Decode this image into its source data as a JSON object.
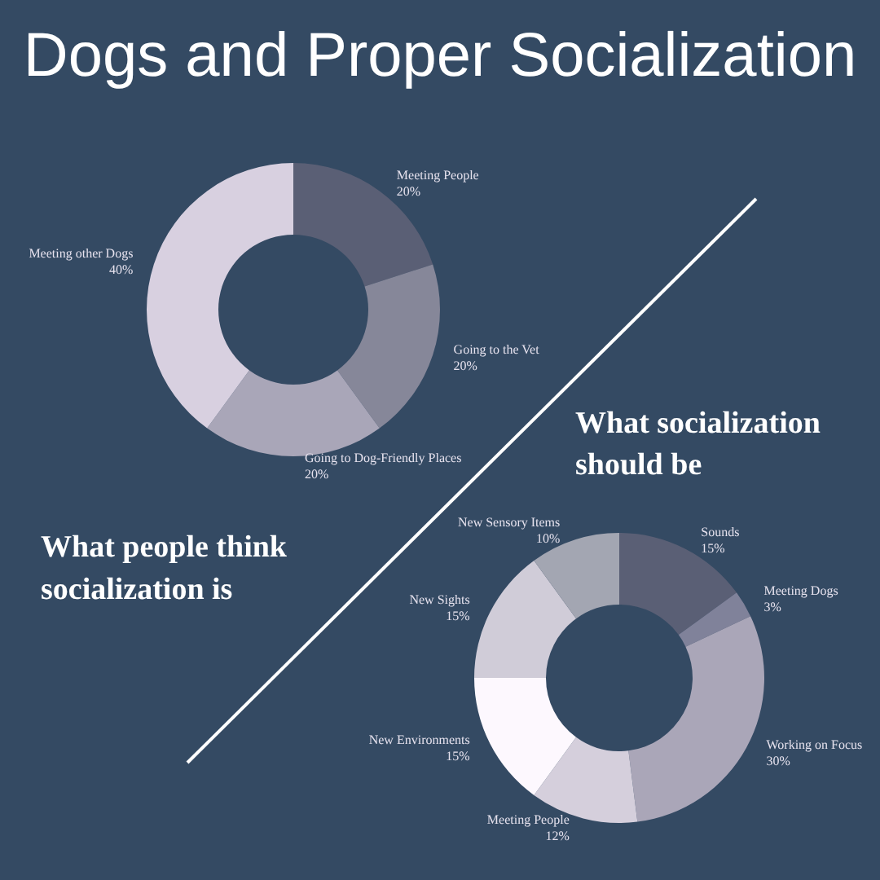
{
  "chart_data": [
    {
      "type": "donut",
      "title": "Dogs and Proper Socialization",
      "subtitle": "What people think socialization is",
      "categories": [
        "Meeting People",
        "Going to the Vet",
        "Going to Dog-Friendly Places",
        "Meeting other Dogs"
      ],
      "values": [
        20,
        20,
        20,
        40
      ],
      "value_labels": [
        "20%",
        "20%",
        "20%",
        "40%"
      ],
      "colors": [
        "#5a5f75",
        "#868799",
        "#a9a6b8",
        "#d8d0e0"
      ]
    },
    {
      "type": "donut",
      "title": "What socialization should be",
      "categories": [
        "Sounds",
        "Meeting Dogs",
        "Working on Focus",
        "Meeting People",
        "New Environments",
        "New Sights",
        "New Sensory Items"
      ],
      "values": [
        15,
        3,
        30,
        12,
        15,
        15,
        10
      ],
      "value_labels": [
        "15%",
        "3%",
        "30%",
        "12%",
        "15%",
        "15%",
        "10%"
      ],
      "colors": [
        "#5a5f75",
        "#80829a",
        "#aaa6b8",
        "#d5cfdc",
        "#fdf8fe",
        "#d0ccd8",
        "#a3a6b2"
      ]
    }
  ]
}
